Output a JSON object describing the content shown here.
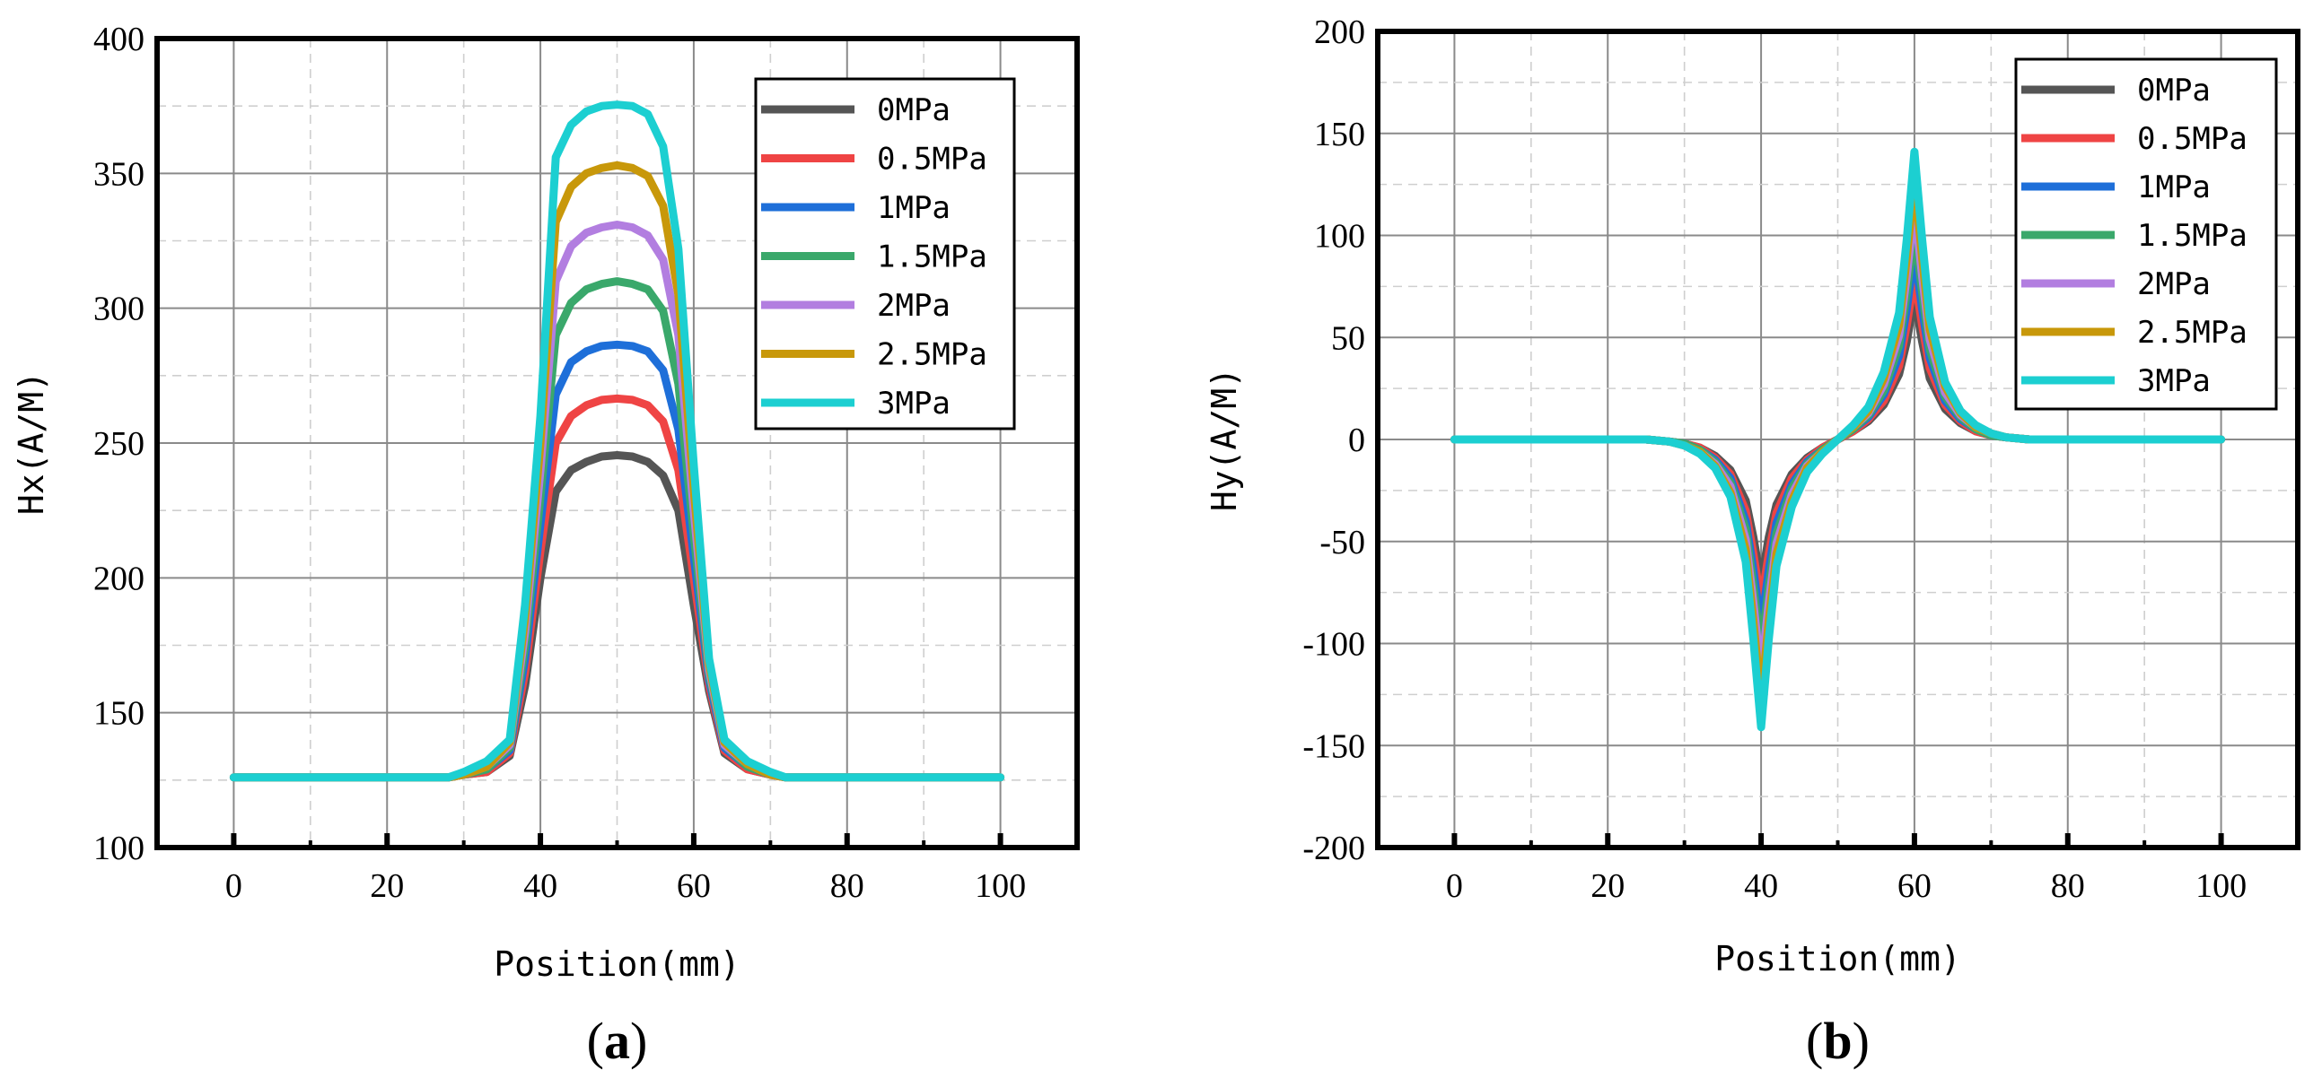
{
  "chart_data": [
    {
      "type": "line",
      "panel_label": "(a)",
      "xlabel": "Position(mm)",
      "ylabel": "Hx(A/M)",
      "xlim": [
        -10,
        110
      ],
      "ylim": [
        100,
        400
      ],
      "xticks": [
        "0",
        "20",
        "40",
        "60",
        "80",
        "100"
      ],
      "yticks": [
        "100",
        "150",
        "200",
        "250",
        "300",
        "350",
        "400"
      ],
      "legend_position": "top-right",
      "grid": true,
      "x": [
        0,
        10,
        20,
        28,
        30,
        33,
        36,
        38,
        40,
        42,
        44,
        46,
        48,
        50,
        52,
        54,
        56,
        58,
        60,
        62,
        64,
        67,
        70,
        72,
        80,
        90,
        100
      ],
      "series": [
        {
          "name": "0MPa",
          "color": "#555555",
          "values": [
            126,
            126,
            126,
            126,
            127,
            128,
            134,
            160,
            200,
            232,
            240,
            243,
            245,
            245.5,
            245,
            243,
            238,
            225,
            190,
            158,
            135,
            129,
            127,
            126,
            126,
            126,
            126
          ]
        },
        {
          "name": "0.5MPa",
          "color": "#ef4444",
          "values": [
            126,
            126,
            126,
            126,
            127,
            128,
            135,
            165,
            210,
            250,
            260,
            264,
            266,
            266.5,
            266,
            264,
            258,
            240,
            200,
            160,
            136,
            129,
            127,
            126,
            126,
            126,
            126
          ]
        },
        {
          "name": "1MPa",
          "color": "#1e6fd9",
          "values": [
            126,
            126,
            126,
            126,
            127,
            129,
            136,
            170,
            220,
            268,
            280,
            284,
            286,
            286.5,
            286,
            284,
            277,
            255,
            208,
            162,
            137,
            130,
            127,
            126,
            126,
            126,
            126
          ]
        },
        {
          "name": "1.5MPa",
          "color": "#3aa86b",
          "values": [
            126,
            126,
            126,
            126,
            127,
            129,
            137,
            175,
            230,
            290,
            302,
            307,
            309,
            310,
            309,
            307,
            299,
            272,
            216,
            164,
            138,
            130,
            127,
            126,
            126,
            126,
            126
          ]
        },
        {
          "name": "2MPa",
          "color": "#b27ee0",
          "values": [
            126,
            126,
            126,
            126,
            127,
            130,
            138,
            180,
            240,
            310,
            323,
            328,
            330,
            331,
            330,
            327,
            318,
            290,
            225,
            166,
            138,
            131,
            127,
            126,
            126,
            126,
            126
          ]
        },
        {
          "name": "2.5MPa",
          "color": "#c8980a",
          "values": [
            126,
            126,
            126,
            126,
            127,
            130,
            139,
            185,
            250,
            332,
            345,
            350,
            352,
            353,
            352,
            349,
            338,
            305,
            233,
            168,
            139,
            131,
            127,
            126,
            126,
            126,
            126
          ]
        },
        {
          "name": "3MPa",
          "color": "#1ccfd1",
          "values": [
            126,
            126,
            126,
            126,
            128,
            132,
            140,
            190,
            260,
            356,
            368,
            373,
            375,
            375.5,
            375,
            372,
            360,
            322,
            242,
            170,
            140,
            132,
            128,
            126,
            126,
            126,
            126
          ]
        }
      ]
    },
    {
      "type": "line",
      "panel_label": "(b)",
      "xlabel": "Position(mm)",
      "ylabel": "Hy(A/M)",
      "xlim": [
        -10,
        110
      ],
      "ylim": [
        -200,
        200
      ],
      "xticks": [
        "0",
        "20",
        "40",
        "60",
        "80",
        "100"
      ],
      "yticks": [
        "-200",
        "-150",
        "-100",
        "-50",
        "0",
        "50",
        "100",
        "150",
        "200"
      ],
      "legend_position": "top-right",
      "grid": true,
      "x": [
        0,
        10,
        20,
        25,
        28,
        30,
        32,
        34,
        36,
        38,
        39,
        40,
        41,
        42,
        44,
        46,
        48,
        50,
        52,
        54,
        56,
        58,
        59,
        60,
        61,
        62,
        64,
        66,
        68,
        70,
        72,
        75,
        80,
        90,
        100
      ],
      "series": [
        {
          "name": "0MPa",
          "color": "#555555",
          "values": [
            0,
            0,
            0,
            0,
            -1,
            -2,
            -4,
            -8,
            -15,
            -30,
            -48,
            -70,
            -48,
            -32,
            -17,
            -9,
            -4,
            0,
            4,
            9,
            17,
            32,
            48,
            70,
            48,
            30,
            15,
            8,
            4,
            2,
            1,
            0,
            0,
            0,
            0
          ]
        },
        {
          "name": "0.5MPa",
          "color": "#ef4444",
          "values": [
            0,
            0,
            0,
            0,
            -1,
            -2,
            -4,
            -9,
            -17,
            -35,
            -56,
            -80,
            -56,
            -36,
            -19,
            -10,
            -4,
            0,
            4,
            10,
            19,
            36,
            56,
            80,
            56,
            35,
            17,
            9,
            4,
            2,
            1,
            0,
            0,
            0,
            0
          ]
        },
        {
          "name": "1MPa",
          "color": "#1e6fd9",
          "values": [
            0,
            0,
            0,
            0,
            -1,
            -2,
            -5,
            -10,
            -19,
            -40,
            -64,
            -92,
            -64,
            -41,
            -22,
            -11,
            -5,
            0,
            5,
            11,
            22,
            41,
            64,
            92,
            64,
            40,
            19,
            10,
            5,
            2,
            1,
            0,
            0,
            0,
            0
          ]
        },
        {
          "name": "1.5MPa",
          "color": "#3aa86b",
          "values": [
            0,
            0,
            0,
            0,
            -1,
            -2,
            -5,
            -11,
            -21,
            -44,
            -72,
            -103,
            -72,
            -46,
            -24,
            -12,
            -5,
            0,
            5,
            12,
            24,
            46,
            72,
            103,
            72,
            44,
            21,
            11,
            5,
            2,
            1,
            0,
            0,
            0,
            0
          ]
        },
        {
          "name": "2MPa",
          "color": "#b27ee0",
          "values": [
            0,
            0,
            0,
            0,
            -1,
            -3,
            -6,
            -12,
            -23,
            -49,
            -80,
            -115,
            -80,
            -51,
            -27,
            -13,
            -6,
            0,
            6,
            13,
            27,
            51,
            80,
            115,
            80,
            49,
            23,
            12,
            6,
            3,
            1,
            0,
            0,
            0,
            0
          ]
        },
        {
          "name": "2.5MPa",
          "color": "#c8980a",
          "values": [
            0,
            0,
            0,
            0,
            -1,
            -3,
            -6,
            -13,
            -26,
            -54,
            -89,
            -128,
            -89,
            -56,
            -30,
            -14,
            -6,
            0,
            6,
            14,
            30,
            56,
            89,
            128,
            89,
            54,
            26,
            13,
            6,
            3,
            1,
            0,
            0,
            0,
            0
          ]
        },
        {
          "name": "3MPa",
          "color": "#1ccfd1",
          "values": [
            0,
            0,
            0,
            0,
            -1,
            -3,
            -7,
            -14,
            -28,
            -60,
            -98,
            -141,
            -98,
            -62,
            -33,
            -16,
            -7,
            0,
            7,
            16,
            33,
            62,
            98,
            141,
            98,
            60,
            28,
            14,
            7,
            3,
            1,
            0,
            0,
            0,
            0
          ]
        }
      ]
    }
  ]
}
